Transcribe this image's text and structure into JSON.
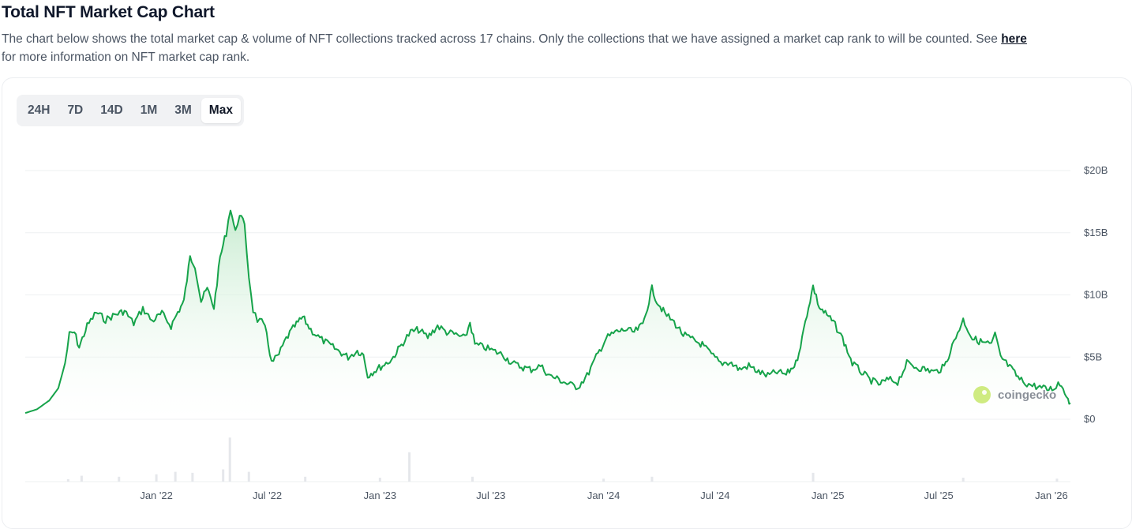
{
  "header": {
    "title": "Total NFT Market Cap Chart",
    "description": "The chart below shows the total market cap & volume of NFT collections tracked across 17 chains. Only the collections that we have assigned a market cap rank to will be counted. See",
    "link_text": "here",
    "description_end": "for more information on NFT market cap rank."
  },
  "tabs": [
    {
      "label": "24H",
      "active": false
    },
    {
      "label": "7D",
      "active": false
    },
    {
      "label": "14D",
      "active": false
    },
    {
      "label": "1M",
      "active": false
    },
    {
      "label": "3M",
      "active": false
    },
    {
      "label": "Max",
      "active": true
    }
  ],
  "watermark": "coingecko",
  "colors": {
    "line": "#16a34a",
    "fill_top": "#bfe9c9",
    "volume": "#e5e7eb",
    "grid": "#eef0f2"
  },
  "chart_data": {
    "type": "area",
    "y_axis": {
      "ticks": [
        "$0",
        "$5B",
        "$10B",
        "$15B",
        "$20B"
      ],
      "unit": "USD billions",
      "ylim": [
        0,
        20
      ]
    },
    "x_ticks": [
      "Jan '22",
      "Jul '22",
      "Jan '23",
      "Jul '23",
      "Jan '24",
      "Jul '24",
      "Jan '25",
      "Jul '25",
      "Jan '26"
    ],
    "series": [
      {
        "values": [
          [
            "2021-06-01",
            0.5
          ],
          [
            "2021-06-20",
            0.8
          ],
          [
            "2021-07-10",
            1.5
          ],
          [
            "2021-07-25",
            2.5
          ],
          [
            "2021-08-05",
            4.5
          ],
          [
            "2021-08-12",
            6.8
          ],
          [
            "2021-08-20",
            7.0
          ],
          [
            "2021-08-28",
            5.8
          ],
          [
            "2021-09-10",
            7.5
          ],
          [
            "2021-09-25",
            8.6
          ],
          [
            "2021-10-10",
            8.0
          ],
          [
            "2021-10-25",
            8.4
          ],
          [
            "2021-11-10",
            8.7
          ],
          [
            "2021-11-25",
            7.7
          ],
          [
            "2021-12-10",
            8.9
          ],
          [
            "2021-12-25",
            7.9
          ],
          [
            "2022-01-10",
            8.5
          ],
          [
            "2022-01-25",
            7.5
          ],
          [
            "2022-02-05",
            8.6
          ],
          [
            "2022-02-15",
            9.5
          ],
          [
            "2022-02-25",
            13.0
          ],
          [
            "2022-03-05",
            12.4
          ],
          [
            "2022-03-15",
            9.5
          ],
          [
            "2022-03-25",
            10.5
          ],
          [
            "2022-04-05",
            9.0
          ],
          [
            "2022-04-15",
            13.0
          ],
          [
            "2022-04-25",
            15.0
          ],
          [
            "2022-05-02",
            17.0
          ],
          [
            "2022-05-10",
            15.0
          ],
          [
            "2022-05-17",
            16.6
          ],
          [
            "2022-05-25",
            15.5
          ],
          [
            "2022-06-01",
            11.5
          ],
          [
            "2022-06-08",
            8.8
          ],
          [
            "2022-06-15",
            8.0
          ],
          [
            "2022-06-22",
            7.8
          ],
          [
            "2022-06-30",
            7.0
          ],
          [
            "2022-07-08",
            4.5
          ],
          [
            "2022-07-20",
            5.2
          ],
          [
            "2022-08-01",
            6.5
          ],
          [
            "2022-08-15",
            7.5
          ],
          [
            "2022-08-28",
            8.2
          ],
          [
            "2022-09-10",
            7.2
          ],
          [
            "2022-09-25",
            6.5
          ],
          [
            "2022-10-10",
            6.0
          ],
          [
            "2022-10-25",
            5.5
          ],
          [
            "2022-11-10",
            5.0
          ],
          [
            "2022-11-25",
            5.5
          ],
          [
            "2022-12-05",
            5.2
          ],
          [
            "2022-12-12",
            3.5
          ],
          [
            "2022-12-20",
            3.8
          ],
          [
            "2023-01-05",
            4.3
          ],
          [
            "2023-01-20",
            4.8
          ],
          [
            "2023-02-05",
            6.0
          ],
          [
            "2023-02-20",
            7.0
          ],
          [
            "2023-03-05",
            7.2
          ],
          [
            "2023-03-20",
            6.6
          ],
          [
            "2023-04-05",
            7.5
          ],
          [
            "2023-04-20",
            7.0
          ],
          [
            "2023-05-05",
            6.8
          ],
          [
            "2023-05-20",
            6.5
          ],
          [
            "2023-05-28",
            7.8
          ],
          [
            "2023-06-05",
            6.0
          ],
          [
            "2023-06-20",
            5.8
          ],
          [
            "2023-07-05",
            5.5
          ],
          [
            "2023-07-20",
            5.2
          ],
          [
            "2023-08-05",
            4.5
          ],
          [
            "2023-08-20",
            4.2
          ],
          [
            "2023-09-05",
            4.0
          ],
          [
            "2023-09-20",
            4.3
          ],
          [
            "2023-10-05",
            3.5
          ],
          [
            "2023-10-20",
            3.2
          ],
          [
            "2023-11-05",
            2.8
          ],
          [
            "2023-11-20",
            2.6
          ],
          [
            "2023-12-05",
            3.5
          ],
          [
            "2023-12-20",
            5.0
          ],
          [
            "2024-01-05",
            6.5
          ],
          [
            "2024-01-20",
            7.0
          ],
          [
            "2024-02-05",
            7.2
          ],
          [
            "2024-02-20",
            7.0
          ],
          [
            "2024-03-05",
            7.6
          ],
          [
            "2024-03-15",
            9.5
          ],
          [
            "2024-03-20",
            10.5
          ],
          [
            "2024-03-28",
            9.5
          ],
          [
            "2024-04-10",
            8.5
          ],
          [
            "2024-04-25",
            7.8
          ],
          [
            "2024-05-10",
            6.8
          ],
          [
            "2024-05-25",
            6.4
          ],
          [
            "2024-06-10",
            6.0
          ],
          [
            "2024-06-25",
            5.2
          ],
          [
            "2024-07-10",
            4.5
          ],
          [
            "2024-07-25",
            4.6
          ],
          [
            "2024-08-10",
            4.0
          ],
          [
            "2024-08-25",
            4.3
          ],
          [
            "2024-09-10",
            3.8
          ],
          [
            "2024-09-25",
            3.5
          ],
          [
            "2024-10-10",
            3.8
          ],
          [
            "2024-10-25",
            3.6
          ],
          [
            "2024-11-10",
            4.5
          ],
          [
            "2024-11-20",
            6.5
          ],
          [
            "2024-11-28",
            8.5
          ],
          [
            "2024-12-08",
            10.7
          ],
          [
            "2024-12-18",
            9.0
          ],
          [
            "2024-12-28",
            8.5
          ],
          [
            "2025-01-10",
            7.8
          ],
          [
            "2025-01-25",
            6.5
          ],
          [
            "2025-02-10",
            4.5
          ],
          [
            "2025-02-25",
            3.8
          ],
          [
            "2025-03-10",
            3.2
          ],
          [
            "2025-03-25",
            2.8
          ],
          [
            "2025-04-10",
            3.2
          ],
          [
            "2025-04-25",
            3.0
          ],
          [
            "2025-05-10",
            4.5
          ],
          [
            "2025-05-25",
            4.2
          ],
          [
            "2025-06-10",
            4.0
          ],
          [
            "2025-06-25",
            3.8
          ],
          [
            "2025-07-10",
            4.2
          ],
          [
            "2025-07-20",
            5.5
          ],
          [
            "2025-08-01",
            7.0
          ],
          [
            "2025-08-10",
            8.0
          ],
          [
            "2025-08-18",
            7.2
          ],
          [
            "2025-08-25",
            6.5
          ],
          [
            "2025-09-10",
            6.2
          ],
          [
            "2025-09-25",
            6.0
          ],
          [
            "2025-10-01",
            6.8
          ],
          [
            "2025-10-10",
            5.0
          ],
          [
            "2025-10-25",
            4.2
          ],
          [
            "2025-11-10",
            3.2
          ],
          [
            "2025-11-25",
            2.8
          ],
          [
            "2025-12-10",
            2.6
          ],
          [
            "2025-12-25",
            2.4
          ],
          [
            "2026-01-05",
            2.5
          ],
          [
            "2026-01-12",
            2.9
          ],
          [
            "2026-01-20",
            2.6
          ],
          [
            "2026-01-28",
            1.6
          ],
          [
            "2026-02-01",
            1.3
          ]
        ]
      }
    ],
    "volume": [
      [
        "2021-08-10",
        0.05
      ],
      [
        "2021-09-01",
        0.12
      ],
      [
        "2021-11-01",
        0.1
      ],
      [
        "2022-01-01",
        0.15
      ],
      [
        "2022-02-01",
        0.2
      ],
      [
        "2022-03-01",
        0.18
      ],
      [
        "2022-04-20",
        0.25
      ],
      [
        "2022-05-01",
        0.9
      ],
      [
        "2022-06-01",
        0.2
      ],
      [
        "2022-09-01",
        0.1
      ],
      [
        "2023-01-01",
        0.08
      ],
      [
        "2023-02-18",
        0.6
      ],
      [
        "2023-06-01",
        0.1
      ],
      [
        "2024-01-01",
        0.06
      ],
      [
        "2024-03-20",
        0.1
      ],
      [
        "2024-12-08",
        0.18
      ],
      [
        "2025-08-10",
        0.08
      ],
      [
        "2026-01-10",
        0.06
      ]
    ]
  }
}
